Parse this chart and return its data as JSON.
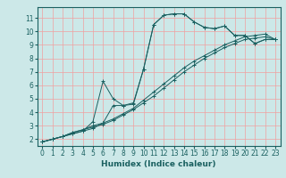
{
  "xlabel": "Humidex (Indice chaleur)",
  "ylabel": "",
  "background_color": "#cce8e8",
  "grid_color": "#f0a0a0",
  "line_color": "#1a6060",
  "xlim": [
    -0.5,
    23.5
  ],
  "ylim": [
    1.5,
    11.8
  ],
  "xticks": [
    0,
    1,
    2,
    3,
    4,
    5,
    6,
    7,
    8,
    9,
    10,
    11,
    12,
    13,
    14,
    15,
    16,
    17,
    18,
    19,
    20,
    21,
    22,
    23
  ],
  "yticks": [
    2,
    3,
    4,
    5,
    6,
    7,
    8,
    9,
    10,
    11
  ],
  "curves": [
    {
      "x": [
        0,
        1,
        2,
        3,
        4,
        5,
        6,
        7,
        8,
        9,
        10,
        11,
        12,
        13,
        14,
        15,
        16,
        17,
        18,
        19,
        20,
        21,
        22,
        23
      ],
      "y": [
        1.8,
        2.0,
        2.2,
        2.4,
        2.6,
        2.8,
        3.2,
        4.5,
        4.5,
        4.6,
        7.2,
        10.5,
        11.2,
        11.3,
        11.3,
        10.7,
        10.3,
        10.2,
        10.4,
        9.7,
        9.7,
        9.1,
        9.4,
        9.4
      ]
    },
    {
      "x": [
        0,
        1,
        2,
        3,
        4,
        5,
        6,
        7,
        8,
        9,
        10,
        11,
        12,
        13,
        14,
        15,
        16,
        17,
        18,
        19,
        20,
        21,
        22,
        23
      ],
      "y": [
        1.8,
        2.0,
        2.2,
        2.4,
        2.6,
        3.3,
        6.3,
        5.0,
        4.5,
        4.7,
        7.2,
        10.5,
        11.2,
        11.3,
        11.3,
        10.7,
        10.3,
        10.2,
        10.4,
        9.7,
        9.7,
        9.1,
        9.4,
        9.4
      ]
    },
    {
      "x": [
        0,
        1,
        2,
        3,
        4,
        5,
        6,
        7,
        8,
        9,
        10,
        11,
        12,
        13,
        14,
        15,
        16,
        17,
        18,
        19,
        20,
        21,
        22,
        23
      ],
      "y": [
        1.8,
        2.0,
        2.2,
        2.5,
        2.7,
        3.0,
        3.2,
        3.5,
        3.9,
        4.3,
        4.9,
        5.5,
        6.1,
        6.7,
        7.3,
        7.8,
        8.2,
        8.6,
        9.0,
        9.3,
        9.6,
        9.7,
        9.8,
        9.4
      ]
    },
    {
      "x": [
        0,
        1,
        2,
        3,
        4,
        5,
        6,
        7,
        8,
        9,
        10,
        11,
        12,
        13,
        14,
        15,
        16,
        17,
        18,
        19,
        20,
        21,
        22,
        23
      ],
      "y": [
        1.8,
        2.0,
        2.2,
        2.5,
        2.7,
        2.9,
        3.1,
        3.4,
        3.8,
        4.2,
        4.7,
        5.2,
        5.8,
        6.4,
        7.0,
        7.5,
        8.0,
        8.4,
        8.8,
        9.1,
        9.4,
        9.5,
        9.6,
        9.4
      ]
    }
  ]
}
